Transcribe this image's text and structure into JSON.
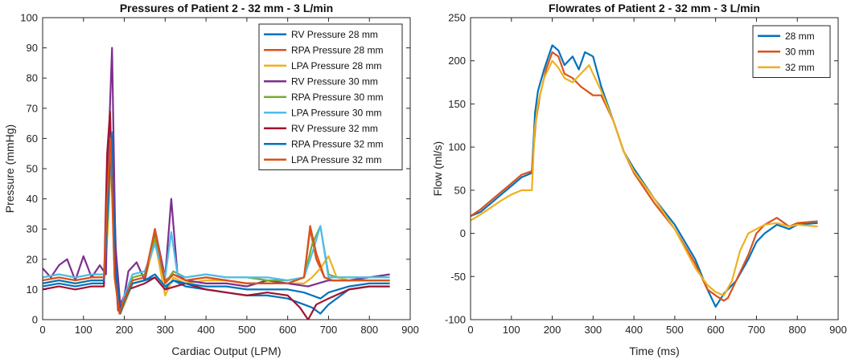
{
  "chart_data": [
    {
      "type": "line",
      "title": "Pressures of Patient 2 - 32 mm - 3 L/min",
      "xlabel": "Cardiac Output (LPM)",
      "ylabel": "Pressure (mmHg)",
      "xlim": [
        0,
        900
      ],
      "ylim": [
        0,
        100
      ],
      "xticks": [
        0,
        100,
        200,
        300,
        400,
        500,
        600,
        700,
        800,
        900
      ],
      "yticks": [
        0,
        10,
        20,
        30,
        40,
        50,
        60,
        70,
        80,
        90,
        100
      ],
      "legend_position": "top-right",
      "series": [
        {
          "name": "RV Pressure 28 mm",
          "color": "#0072BD",
          "x": [
            0,
            40,
            80,
            120,
            150,
            160,
            170,
            180,
            190,
            200,
            220,
            250,
            275,
            300,
            320,
            350,
            400,
            450,
            500,
            550,
            600,
            640,
            660,
            680,
            700,
            750,
            800,
            850
          ],
          "y": [
            11,
            12,
            11,
            12,
            12,
            40,
            62,
            20,
            3,
            5,
            12,
            13,
            14,
            10,
            13,
            11,
            10,
            9,
            8,
            8,
            7,
            5,
            4,
            2,
            5,
            10,
            11,
            11
          ]
        },
        {
          "name": "RPA Pressure 28 mm",
          "color": "#D95319",
          "x": [
            0,
            40,
            80,
            120,
            150,
            160,
            168,
            178,
            190,
            200,
            220,
            250,
            275,
            300,
            320,
            350,
            400,
            450,
            500,
            550,
            600,
            640,
            655,
            670,
            690,
            710,
            750,
            800,
            850
          ],
          "y": [
            13,
            14,
            13,
            14,
            14,
            35,
            58,
            15,
            2,
            6,
            13,
            14,
            28,
            13,
            15,
            13,
            14,
            13,
            12,
            12,
            12,
            14,
            30,
            20,
            14,
            13,
            13,
            13,
            13
          ]
        },
        {
          "name": "LPA Pressure 28 mm",
          "color": "#EDB120",
          "x": [
            0,
            40,
            80,
            120,
            150,
            160,
            168,
            178,
            190,
            200,
            220,
            250,
            275,
            300,
            320,
            350,
            400,
            450,
            500,
            550,
            600,
            640,
            660,
            680,
            700,
            720,
            750,
            800,
            850
          ],
          "y": [
            12,
            13,
            12,
            13,
            13,
            30,
            55,
            12,
            2,
            5,
            12,
            13,
            26,
            8,
            14,
            12,
            13,
            13,
            12,
            12,
            12,
            12,
            14,
            17,
            21,
            14,
            13,
            13,
            13
          ]
        },
        {
          "name": "RV Pressure 30 mm",
          "color": "#7E2F8E",
          "x": [
            0,
            20,
            40,
            60,
            80,
            100,
            120,
            140,
            155,
            162,
            170,
            178,
            190,
            200,
            210,
            230,
            250,
            275,
            300,
            315,
            330,
            350,
            400,
            450,
            500,
            550,
            600,
            650,
            700,
            750,
            800,
            850
          ],
          "y": [
            17,
            14,
            18,
            20,
            13,
            21,
            14,
            18,
            15,
            60,
            90,
            25,
            5,
            8,
            16,
            19,
            13,
            30,
            14,
            40,
            15,
            13,
            12,
            12,
            11,
            13,
            12,
            11,
            13,
            13,
            14,
            15
          ]
        },
        {
          "name": "RPA Pressure 30 mm",
          "color": "#77AC30",
          "x": [
            0,
            40,
            80,
            120,
            150,
            160,
            168,
            178,
            190,
            200,
            220,
            250,
            275,
            300,
            320,
            350,
            400,
            450,
            500,
            550,
            600,
            640,
            660,
            680,
            700,
            720,
            750,
            800,
            850
          ],
          "y": [
            14,
            15,
            14,
            15,
            15,
            36,
            60,
            14,
            3,
            7,
            14,
            15,
            27,
            12,
            16,
            14,
            15,
            14,
            14,
            13,
            13,
            14,
            25,
            31,
            15,
            14,
            14,
            14,
            14
          ]
        },
        {
          "name": "LPA Pressure 30 mm",
          "color": "#4DBEEE",
          "x": [
            0,
            40,
            80,
            120,
            150,
            160,
            168,
            178,
            190,
            200,
            220,
            250,
            275,
            300,
            315,
            330,
            350,
            400,
            450,
            500,
            550,
            600,
            640,
            660,
            680,
            700,
            720,
            750,
            800,
            850
          ],
          "y": [
            14,
            15,
            14,
            15,
            15,
            35,
            62,
            14,
            3,
            8,
            15,
            16,
            25,
            14,
            29,
            15,
            14,
            15,
            14,
            14,
            14,
            13,
            14,
            22,
            31,
            14,
            14,
            14,
            14,
            14
          ]
        },
        {
          "name": "RV Pressure 32 mm",
          "color": "#A2142F",
          "x": [
            0,
            40,
            80,
            120,
            150,
            158,
            165,
            175,
            185,
            195,
            210,
            250,
            275,
            300,
            350,
            400,
            450,
            500,
            550,
            600,
            630,
            650,
            670,
            700,
            750,
            800,
            850
          ],
          "y": [
            10,
            11,
            10,
            11,
            11,
            55,
            69,
            20,
            3,
            5,
            10,
            12,
            14,
            10,
            12,
            10,
            9,
            8,
            9,
            8,
            4,
            0,
            5,
            7,
            10,
            11,
            11
          ]
        },
        {
          "name": "RPA Pressure 32 mm",
          "color": "#0072BD",
          "x": [
            0,
            40,
            80,
            120,
            150,
            160,
            168,
            178,
            190,
            200,
            220,
            250,
            275,
            300,
            320,
            350,
            400,
            450,
            500,
            550,
            600,
            640,
            660,
            680,
            700,
            750,
            800,
            850
          ],
          "y": [
            12,
            13,
            12,
            13,
            13,
            38,
            61,
            18,
            2,
            6,
            12,
            13,
            15,
            11,
            13,
            12,
            11,
            11,
            10,
            10,
            10,
            9,
            8,
            7,
            9,
            11,
            12,
            12
          ]
        },
        {
          "name": "LPA Pressure 32 mm",
          "color": "#D95319",
          "x": [
            0,
            40,
            80,
            120,
            150,
            158,
            166,
            176,
            188,
            198,
            220,
            250,
            275,
            300,
            320,
            350,
            400,
            450,
            500,
            550,
            600,
            640,
            655,
            670,
            690,
            710,
            750,
            800,
            850
          ],
          "y": [
            13,
            14,
            13,
            14,
            14,
            40,
            60,
            14,
            2,
            6,
            13,
            14,
            30,
            12,
            15,
            13,
            14,
            13,
            12,
            12,
            12,
            14,
            31,
            22,
            14,
            13,
            13,
            13,
            13
          ]
        }
      ]
    },
    {
      "type": "line",
      "title": "Flowrates of Patient 2 - 32 mm - 3 L/min",
      "xlabel": "Time (ms)",
      "ylabel": "Flow (ml/s)",
      "xlim": [
        0,
        900
      ],
      "ylim": [
        -100,
        250
      ],
      "xticks": [
        0,
        100,
        200,
        300,
        400,
        500,
        600,
        700,
        800,
        900
      ],
      "yticks": [
        -100,
        -50,
        0,
        50,
        100,
        150,
        200,
        250
      ],
      "legend_position": "top-right",
      "series": [
        {
          "name": "28 mm",
          "color": "#0072BD",
          "x": [
            0,
            25,
            50,
            75,
            100,
            125,
            150,
            158,
            165,
            180,
            200,
            215,
            230,
            250,
            265,
            280,
            300,
            320,
            350,
            375,
            400,
            450,
            500,
            550,
            580,
            600,
            620,
            650,
            680,
            700,
            720,
            750,
            780,
            800,
            850
          ],
          "y": [
            20,
            25,
            35,
            45,
            55,
            65,
            70,
            140,
            165,
            190,
            218,
            212,
            195,
            205,
            190,
            210,
            205,
            170,
            130,
            95,
            75,
            40,
            10,
            -30,
            -65,
            -85,
            -70,
            -55,
            -30,
            -10,
            0,
            10,
            5,
            10,
            12
          ]
        },
        {
          "name": "30 mm",
          "color": "#D95319",
          "x": [
            0,
            25,
            50,
            75,
            100,
            125,
            150,
            160,
            170,
            185,
            200,
            215,
            230,
            250,
            270,
            300,
            320,
            350,
            375,
            400,
            450,
            500,
            550,
            580,
            600,
            620,
            630,
            650,
            680,
            700,
            720,
            750,
            780,
            800,
            850
          ],
          "y": [
            20,
            28,
            38,
            48,
            58,
            68,
            72,
            130,
            160,
            190,
            210,
            205,
            185,
            180,
            170,
            160,
            160,
            130,
            95,
            70,
            35,
            5,
            -35,
            -65,
            -72,
            -78,
            -75,
            -55,
            -25,
            0,
            10,
            18,
            8,
            12,
            14
          ]
        },
        {
          "name": "32 mm",
          "color": "#EDB120",
          "x": [
            0,
            25,
            50,
            75,
            100,
            125,
            150,
            157,
            165,
            180,
            200,
            215,
            230,
            250,
            270,
            290,
            300,
            320,
            350,
            375,
            400,
            450,
            500,
            550,
            580,
            600,
            620,
            640,
            660,
            680,
            700,
            720,
            750,
            780,
            800,
            850
          ],
          "y": [
            15,
            22,
            30,
            38,
            45,
            50,
            50,
            120,
            150,
            180,
            200,
            192,
            180,
            175,
            185,
            195,
            185,
            165,
            130,
            95,
            72,
            40,
            5,
            -40,
            -60,
            -68,
            -72,
            -55,
            -20,
            0,
            5,
            10,
            12,
            8,
            10,
            8
          ]
        }
      ]
    }
  ]
}
